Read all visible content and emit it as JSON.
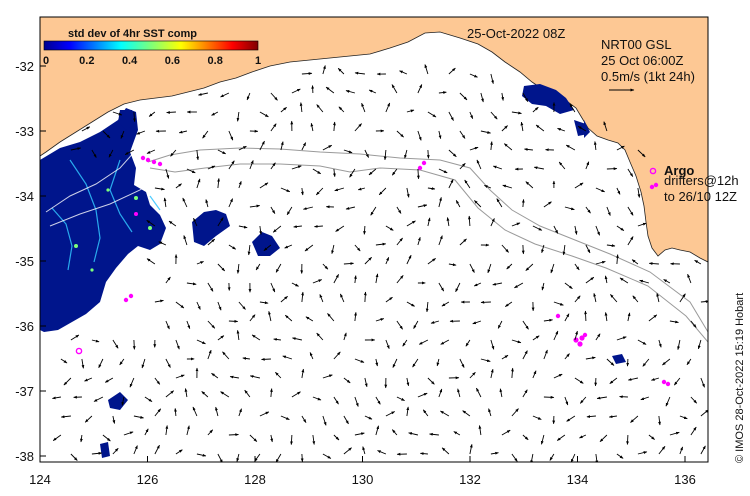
{
  "map": {
    "date_label": "25-Oct-2022 08Z",
    "product": "NRT00 GSL",
    "product_time": "25 Oct 06:00Z",
    "scale_label": "0.5m/s (1kt 24h)",
    "argo_label": "Argo",
    "drifters_label": "drifters@12h",
    "drifters_to_label": "to 26/10 12Z",
    "credit": "© IMOS 28-Oct-2022 15:19 Hobart",
    "colorbar": {
      "title": "std dev of 4hr SST comp",
      "ticks": [
        "0",
        "0.2",
        "0.4",
        "0.6",
        "0.8",
        "1"
      ]
    },
    "x_ticks": [
      "124",
      "126",
      "128",
      "130",
      "132",
      "134",
      "136"
    ],
    "y_ticks": [
      "-32",
      "-33",
      "-34",
      "-35",
      "-36",
      "-37",
      "-38"
    ],
    "colors": {
      "land": "#fdc894",
      "sst_low": "#00158c",
      "argo": "#ff00ff",
      "track": "#9a9a9a"
    }
  }
}
